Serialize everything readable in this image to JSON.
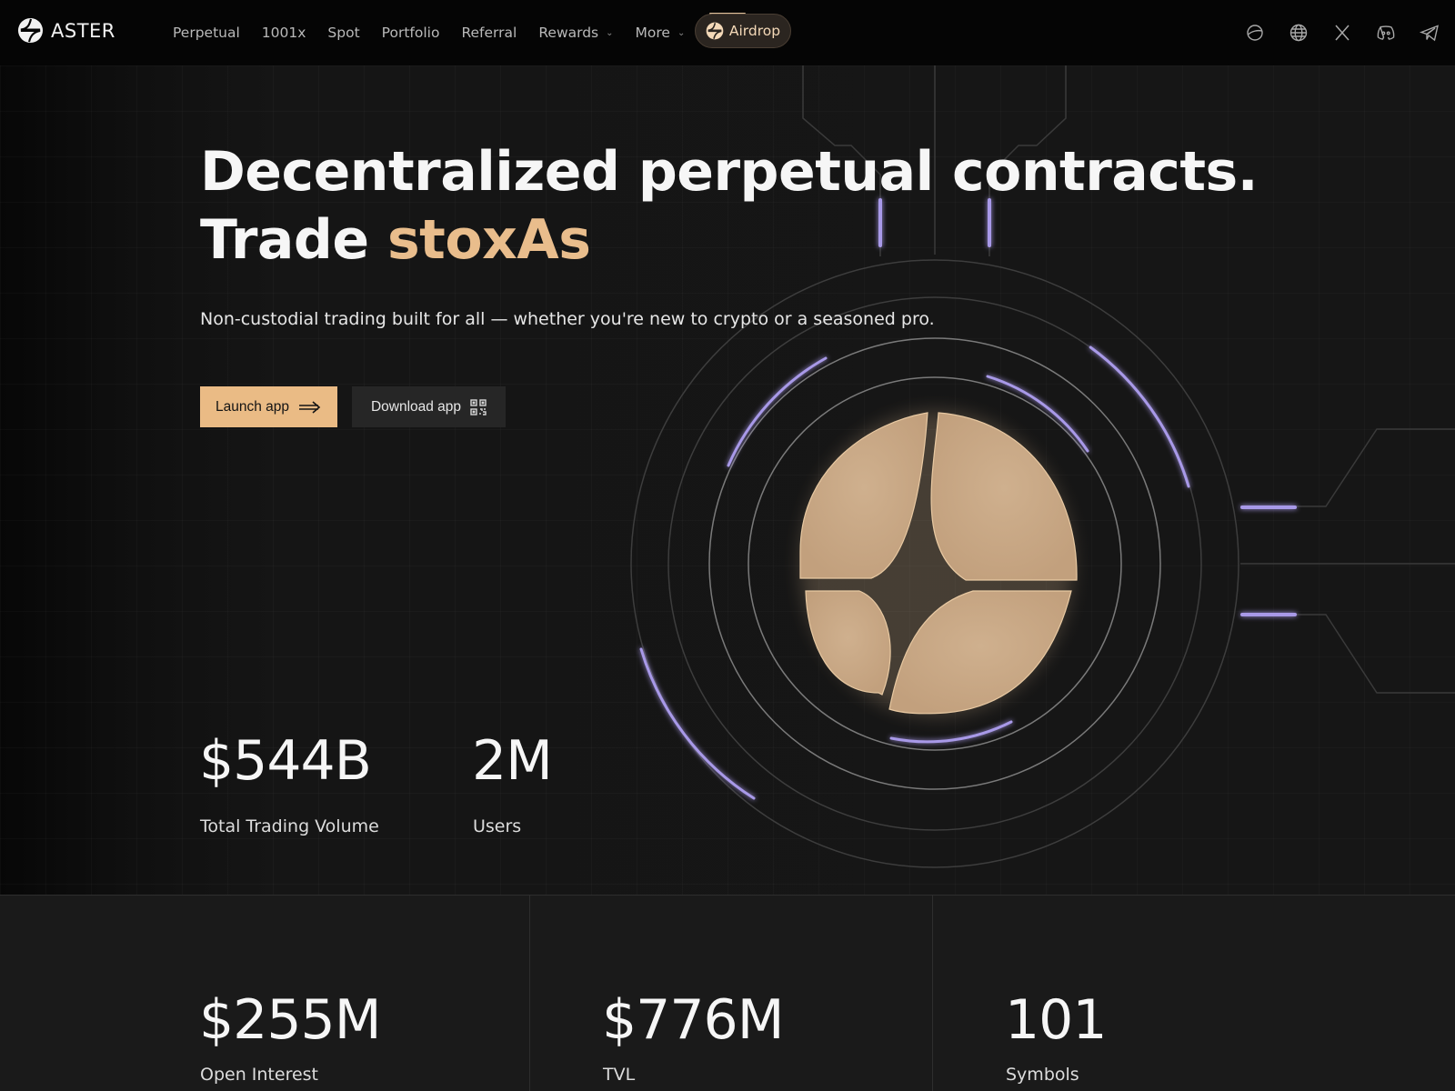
{
  "nav": {
    "brand": "ASTER",
    "items": [
      {
        "label": "Perpetual",
        "dropdown": false
      },
      {
        "label": "1001x",
        "dropdown": false
      },
      {
        "label": "Spot",
        "dropdown": false
      },
      {
        "label": "Portfolio",
        "dropdown": false
      },
      {
        "label": "Referral",
        "dropdown": false
      },
      {
        "label": "Rewards",
        "dropdown": true
      },
      {
        "label": "More",
        "dropdown": true
      }
    ],
    "airdrop_label": "Airdrop",
    "socials": [
      "planet-icon",
      "globe-icon",
      "x-icon",
      "discord-icon",
      "telegram-icon"
    ]
  },
  "hero": {
    "headline_line1": "Decentralized perpetual contracts.",
    "headline_line2_prefix": "Trade ",
    "headline_line2_accent": "stoxAs",
    "subhead": "Non-custodial trading built for all — whether you're new to crypto or a seasoned pro.",
    "launch_label": "Launch app",
    "download_label": "Download app",
    "stats": [
      {
        "value": "$544B",
        "label": "Total Trading Volume"
      },
      {
        "value": "2M",
        "label": "Users"
      }
    ]
  },
  "bottom_stats": [
    {
      "value": "$255M",
      "label": "Open Interest"
    },
    {
      "value": "$776M",
      "label": "TVL"
    },
    {
      "value": "101",
      "label": "Symbols"
    }
  ],
  "colors": {
    "accent": "#e9bd8c",
    "button": "#eabb85",
    "logo_fill": "#c7a582",
    "ring_glow": "#a899e8"
  }
}
